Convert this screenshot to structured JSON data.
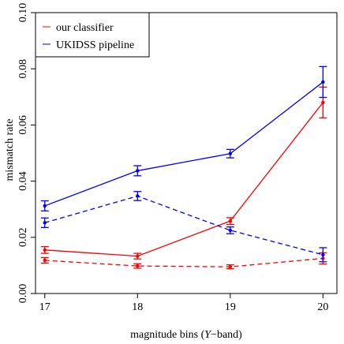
{
  "chart_data": {
    "type": "line",
    "xlabel_main": "magnitude bins (",
    "xlabel_var": "Y",
    "xlabel_tail": "−band)",
    "ylabel": "mismatch rate",
    "xlim": [
      16.9,
      20.15
    ],
    "ylim": [
      0.0,
      0.1
    ],
    "x": [
      17,
      18,
      19,
      20
    ],
    "x_tick_labels": [
      "17",
      "18",
      "19",
      "20"
    ],
    "y_ticks": [
      0.0,
      0.02,
      0.04,
      0.06,
      0.08,
      0.1
    ],
    "y_tick_labels": [
      "0.00",
      "0.02",
      "0.04",
      "0.06",
      "0.08",
      "0.10"
    ],
    "grid": false,
    "legend_position": "top-left",
    "legend": [
      {
        "label": "our classifier",
        "color": "#ff0000"
      },
      {
        "label": "UKIDSS pipeline",
        "color": "#0000ff"
      }
    ],
    "series": [
      {
        "name": "our classifier",
        "color": "#ff0000",
        "dash": false,
        "values": [
          0.0155,
          0.0133,
          0.0258,
          0.068
        ],
        "errors": [
          0.0012,
          0.001,
          0.0012,
          0.0055
        ]
      },
      {
        "name": "our classifier",
        "color": "#ff0000",
        "dash": true,
        "values": [
          0.0118,
          0.0098,
          0.0095,
          0.0125
        ],
        "errors": [
          0.001,
          0.0008,
          0.0007,
          0.002
        ]
      },
      {
        "name": "UKIDSS pipeline",
        "color": "#0000ff",
        "dash": false,
        "values": [
          0.0312,
          0.0437,
          0.0498,
          0.0753
        ],
        "errors": [
          0.0018,
          0.0018,
          0.0015,
          0.0055
        ]
      },
      {
        "name": "UKIDSS pipeline",
        "color": "#0000ff",
        "dash": true,
        "values": [
          0.0252,
          0.0347,
          0.0225,
          0.0138
        ],
        "errors": [
          0.0017,
          0.0016,
          0.0012,
          0.0025
        ]
      }
    ]
  }
}
